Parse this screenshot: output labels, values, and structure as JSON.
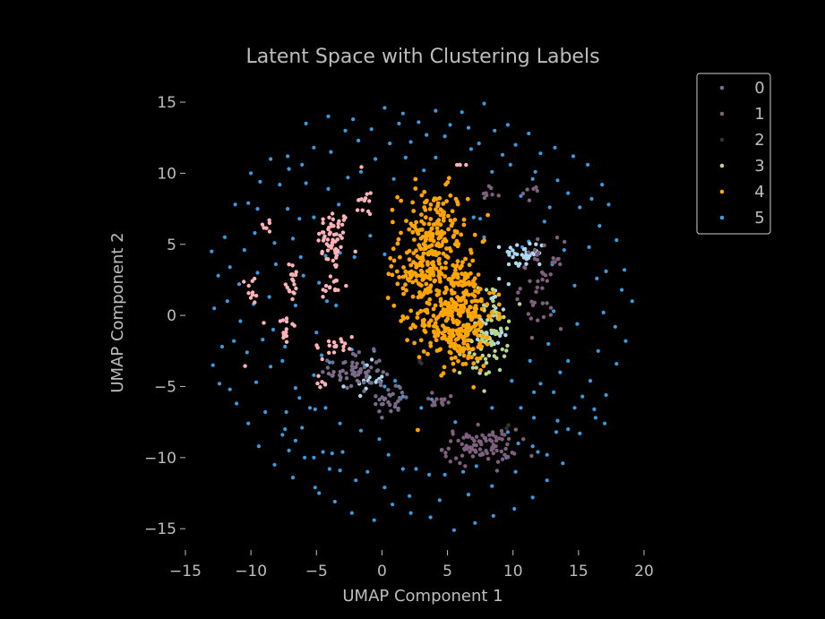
{
  "chart_data": {
    "type": "scatter",
    "title": "Latent Space with Clustering Labels",
    "xlabel": "UMAP Component 1",
    "ylabel": "UMAP Component 2",
    "xlim": [
      -15,
      20
    ],
    "ylim": [
      -16.5,
      16.2
    ],
    "xticks": [
      -15,
      -10,
      -5,
      0,
      5,
      10,
      15,
      20
    ],
    "yticks": [
      -15,
      -10,
      -5,
      0,
      5,
      10,
      15
    ],
    "xtick_labels": [
      "−15",
      "−10",
      "−5",
      "0",
      "5",
      "10",
      "15",
      "20"
    ],
    "ytick_labels": [
      "−15",
      "−10",
      "−5",
      "0",
      "5",
      "10",
      "15"
    ],
    "grid": false,
    "legend_position": "top-right",
    "background": "#000000",
    "series": [
      {
        "name": "0",
        "color": "#7a6b8a",
        "clusters": [
          {
            "center": [
              -2.0,
              -4.0
            ],
            "spread": [
              1.0,
              0.7
            ],
            "n": 60
          },
          {
            "center": [
              0.6,
              -5.8
            ],
            "spread": [
              0.8,
              0.6
            ],
            "n": 30
          }
        ]
      },
      {
        "name": "1",
        "color": "#7e5f7d",
        "clusters": [
          {
            "center": [
              7.5,
              -9.2
            ],
            "spread": [
              1.4,
              0.6
            ],
            "n": 90
          },
          {
            "center": [
              12.2,
              2.2
            ],
            "spread": [
              0.8,
              1.5
            ],
            "n": 45
          },
          {
            "center": [
              4.5,
              -6.0
            ],
            "spread": [
              1.0,
              0.3
            ],
            "n": 14
          },
          {
            "center": [
              8.2,
              8.5
            ],
            "spread": [
              0.4,
              0.3
            ],
            "n": 8
          },
          {
            "center": [
              11.4,
              8.6
            ],
            "spread": [
              0.6,
              0.3
            ],
            "n": 6
          }
        ]
      },
      {
        "name": "2",
        "color": "#333333",
        "clusters": [
          {
            "center": [
              3.2,
              -3.5
            ],
            "spread": [
              0.3,
              0.3
            ],
            "n": 3
          },
          {
            "center": [
              9.8,
              -7.8
            ],
            "spread": [
              0.2,
              0.2
            ],
            "n": 2
          }
        ]
      },
      {
        "name": "3",
        "color": "#b9d98a",
        "clusters": [
          {
            "center": [
              7.8,
              -1.2
            ],
            "spread": [
              0.9,
              1.5
            ],
            "n": 90
          }
        ]
      },
      {
        "name": "4",
        "color": "#ffa500",
        "clusters": [
          {
            "center": [
              3.9,
              5.5
            ],
            "spread": [
              1.3,
              1.7
            ],
            "n": 200
          },
          {
            "center": [
              5.6,
              0.2
            ],
            "spread": [
              1.5,
              2.0
            ],
            "n": 380
          },
          {
            "center": [
              2.5,
              2.9
            ],
            "spread": [
              1.0,
              0.7
            ],
            "n": 50
          },
          {
            "center": [
              2.8,
              -8.0
            ],
            "spread": [
              0.05,
              0.05
            ],
            "n": 1
          }
        ]
      }
    ],
    "ring_series": {
      "name": "5",
      "color": "#3a9be0",
      "points": [
        [
          -13,
          4.5
        ],
        [
          -12.5,
          2.8
        ],
        [
          -12.8,
          0.5
        ],
        [
          -12.2,
          -2.2
        ],
        [
          -12.9,
          -3.5
        ],
        [
          -11.6,
          -5.2
        ],
        [
          -11.2,
          7.8
        ],
        [
          -10,
          10
        ],
        [
          -8.5,
          11
        ],
        [
          -7.2,
          11.2
        ],
        [
          -5.8,
          13.5
        ],
        [
          -4.1,
          14
        ],
        [
          -2.2,
          13.8
        ],
        [
          0.2,
          14.6
        ],
        [
          1.6,
          14.2
        ],
        [
          2.8,
          13.6
        ],
        [
          4.1,
          14.4
        ],
        [
          6.1,
          14.3
        ],
        [
          7.8,
          14.9
        ],
        [
          9.6,
          13.4
        ],
        [
          11.2,
          12.8
        ],
        [
          13.2,
          11.8
        ],
        [
          14.6,
          11.2
        ],
        [
          15.7,
          10.6
        ],
        [
          16.8,
          9.2
        ],
        [
          17.3,
          7.8
        ],
        [
          17.9,
          5.3
        ],
        [
          18.5,
          3.2
        ],
        [
          19.1,
          1.0
        ],
        [
          18.6,
          -1.8
        ],
        [
          17.9,
          -3.4
        ],
        [
          17.1,
          -5.6
        ],
        [
          16.3,
          -7.2
        ],
        [
          15.1,
          -8.3
        ],
        [
          13.8,
          -10.4
        ],
        [
          12.6,
          -11.6
        ],
        [
          11.5,
          -12.8
        ],
        [
          10.1,
          -13.6
        ],
        [
          8.5,
          -14.1
        ],
        [
          7.1,
          -14.6
        ],
        [
          5.5,
          -15.1
        ],
        [
          3.7,
          -14.2
        ],
        [
          2.2,
          -13.9
        ],
        [
          0.8,
          -13.3
        ],
        [
          -0.6,
          -14.4
        ],
        [
          -2.3,
          -13.9
        ],
        [
          -3.6,
          -13.1
        ],
        [
          -5.1,
          -12.1
        ],
        [
          -6.8,
          -11.4
        ],
        [
          -8.2,
          -10.5
        ],
        [
          -9.4,
          -9.2
        ],
        [
          -10.2,
          -7.6
        ],
        [
          -11.1,
          -6.2
        ],
        [
          -9.5,
          7.5
        ],
        [
          -7.8,
          9.2
        ],
        [
          -6.1,
          10.6
        ],
        [
          -3.9,
          11.5
        ],
        [
          -1.8,
          12.3
        ],
        [
          0.6,
          12.1
        ],
        [
          2.2,
          12.2
        ],
        [
          4.8,
          12.6
        ],
        [
          7.4,
          12.1
        ],
        [
          9.2,
          11.3
        ],
        [
          11.7,
          10.1
        ],
        [
          13.4,
          9.5
        ],
        [
          15.1,
          7.6
        ],
        [
          15.8,
          4.8
        ],
        [
          16.4,
          2.6
        ],
        [
          16.9,
          0.2
        ],
        [
          16.5,
          -2.5
        ],
        [
          15.9,
          -4.6
        ],
        [
          14.7,
          -6.5
        ],
        [
          13.3,
          -8.2
        ],
        [
          11.9,
          -9.6
        ],
        [
          10.2,
          -11.0
        ],
        [
          8.4,
          -12.0
        ],
        [
          6.6,
          -12.6
        ],
        [
          4.4,
          -13.0
        ],
        [
          2.1,
          -12.7
        ],
        [
          0.2,
          -12.1
        ],
        [
          -2.0,
          -11.6
        ],
        [
          -4.0,
          -10.8
        ],
        [
          -5.9,
          -10.0
        ],
        [
          -7.6,
          -8.4
        ],
        [
          -8.9,
          -6.8
        ],
        [
          -9.6,
          -4.7
        ],
        [
          -10.3,
          -2.6
        ],
        [
          -10.8,
          -0.4
        ],
        [
          -10.9,
          2.2
        ],
        [
          -10.5,
          4.6
        ],
        [
          -8.2,
          5.1
        ],
        [
          -6.3,
          6.8
        ],
        [
          -4.1,
          8.9
        ],
        [
          -1.6,
          10.1
        ],
        [
          0.9,
          9.6
        ],
        [
          3.2,
          10.2
        ],
        [
          5.9,
          10.6
        ],
        [
          8.4,
          10.1
        ],
        [
          10.6,
          8.4
        ],
        [
          12.4,
          6.6
        ],
        [
          13.9,
          4.6
        ],
        [
          14.7,
          2.1
        ],
        [
          14.9,
          -0.6
        ],
        [
          14.2,
          -3.2
        ],
        [
          13.1,
          -5.4
        ],
        [
          11.6,
          -7.2
        ],
        [
          9.6,
          -8.2
        ],
        [
          -0.2,
          -8.7
        ],
        [
          -1.6,
          -8.1
        ],
        [
          -3.2,
          -7.6
        ],
        [
          -5.1,
          -6.6
        ],
        [
          -6.6,
          -5.1
        ],
        [
          -7.6,
          -3.2
        ],
        [
          -8.3,
          -1.0
        ],
        [
          -8.6,
          1.3
        ],
        [
          -8.1,
          3.6
        ],
        [
          -6.8,
          5.4
        ],
        [
          -5.2,
          6.9
        ],
        [
          -3.3,
          7.8
        ],
        [
          -0.9,
          5.6
        ],
        [
          0.2,
          4.3
        ],
        [
          -2.1,
          4.1
        ],
        [
          -3.2,
          4.4
        ],
        [
          -4.3,
          4.2
        ],
        [
          -4.8,
          2.3
        ],
        [
          -4.2,
          1.0
        ],
        [
          -3.5,
          0.7
        ],
        [
          -5.0,
          -1.2
        ],
        [
          -4.6,
          -2.8
        ],
        [
          -5.2,
          -4.2
        ],
        [
          -5.5,
          -6.5
        ],
        [
          -4.3,
          -6.5
        ],
        [
          0.2,
          -5.0
        ],
        [
          1.0,
          -4.6
        ],
        [
          1.3,
          -5.0
        ],
        [
          1.6,
          -5.7
        ],
        [
          7.5,
          6.8
        ],
        [
          7.0,
          6.9
        ],
        [
          7.8,
          5.5
        ],
        [
          11.2,
          5.2
        ],
        [
          10.7,
          4.8
        ],
        [
          -4.5,
          -9.6
        ],
        [
          -3.8,
          -9.7
        ],
        [
          -3.0,
          -9.6
        ],
        [
          -5.2,
          -10.0
        ],
        [
          -3.2,
          -10.9
        ],
        [
          -4.8,
          -12.5
        ],
        [
          -1.1,
          -11.0
        ],
        [
          0.5,
          -9.8
        ],
        [
          1.6,
          -10.8
        ],
        [
          2.6,
          -10.8
        ],
        [
          3.6,
          -11.2
        ],
        [
          4.8,
          -11.2
        ],
        [
          6.2,
          -11.0
        ],
        [
          7.2,
          -10.6
        ],
        [
          9.5,
          -10.0
        ],
        [
          10.4,
          -9.0
        ],
        [
          11.5,
          -9.2
        ],
        [
          12.6,
          -9.8
        ],
        [
          13.4,
          -7.4
        ],
        [
          14.2,
          -8.0
        ],
        [
          9.9,
          -4.6
        ],
        [
          11.3,
          -3.2
        ],
        [
          12.1,
          -4.8
        ],
        [
          13.6,
          -4.0
        ],
        [
          15.3,
          -5.7
        ],
        [
          16.2,
          -6.6
        ],
        [
          17.0,
          -7.6
        ],
        [
          18.3,
          1.8
        ],
        [
          17.8,
          -0.8
        ],
        [
          17.1,
          3.1
        ],
        [
          16.6,
          6.3
        ],
        [
          16.0,
          8.2
        ],
        [
          14.2,
          8.6
        ],
        [
          12.8,
          7.6
        ],
        [
          -12.4,
          -4.8
        ],
        [
          -11.3,
          -1.8
        ],
        [
          -11.8,
          1.0
        ],
        [
          -11.6,
          3.4
        ],
        [
          -12.0,
          5.5
        ],
        [
          -10.2,
          7.9
        ],
        [
          -9.3,
          9.4
        ],
        [
          -7.1,
          10.3
        ],
        [
          -5.2,
          11.8
        ],
        [
          -2.8,
          13.0
        ],
        [
          -0.8,
          13.1
        ],
        [
          1.3,
          13.5
        ],
        [
          3.4,
          12.7
        ],
        [
          5.2,
          13.4
        ],
        [
          6.6,
          13.2
        ],
        [
          8.6,
          13.0
        ],
        [
          10.2,
          12.0
        ],
        [
          12.1,
          11.4
        ],
        [
          -7.3,
          -6.8
        ],
        [
          -6.1,
          -7.9
        ],
        [
          -8.5,
          -3.6
        ],
        [
          -9.1,
          -1.7
        ],
        [
          -9.8,
          0.8
        ],
        [
          -9.5,
          3.0
        ],
        [
          -9.7,
          5.8
        ],
        [
          -4.0,
          -3.3
        ],
        [
          -2.3,
          -2.4
        ],
        [
          -1.3,
          -3.5
        ],
        [
          -0.6,
          -2.5
        ],
        [
          -6.6,
          -8.8
        ],
        [
          -7.1,
          -9.5
        ],
        [
          -7.4,
          -8.0
        ],
        [
          -6.3,
          -5.8
        ],
        [
          -7.4,
          -2.2
        ],
        [
          3.8,
          -5.9
        ],
        [
          3.0,
          -6.5
        ],
        [
          -6.6,
          0.7
        ],
        [
          -6.0,
          2.8
        ],
        [
          -6.2,
          4.1
        ],
        [
          -7.2,
          7.5
        ],
        [
          -5.8,
          9.3
        ],
        [
          -2.6,
          9.7
        ],
        [
          -0.5,
          11.0
        ],
        [
          1.8,
          11.1
        ],
        [
          4.1,
          11.1
        ],
        [
          6.8,
          11.7
        ],
        [
          9.8,
          10.6
        ],
        [
          11.5,
          9.6
        ],
        [
          13.0,
          3.6
        ],
        [
          13.1,
          0.3
        ],
        [
          12.7,
          -2.0
        ],
        [
          11.6,
          -5.4
        ],
        [
          10.6,
          -6.5
        ],
        [
          5.6,
          -7.5
        ],
        [
          8.4,
          -6.5
        ]
      ]
    },
    "pink_series": {
      "color": "#ffb3b8",
      "clusters": [
        {
          "center": [
            -3.7,
            5.3
          ],
          "spread": [
            0.6,
            1.1
          ],
          "n": 60
        },
        {
          "center": [
            -6.9,
            2.5
          ],
          "spread": [
            0.25,
            0.8
          ],
          "n": 18
        },
        {
          "center": [
            -9.9,
            1.8
          ],
          "spread": [
            0.25,
            0.5
          ],
          "n": 10
        },
        {
          "center": [
            -7.4,
            -0.9
          ],
          "spread": [
            0.4,
            0.8
          ],
          "n": 14
        },
        {
          "center": [
            -3.9,
            2.0
          ],
          "spread": [
            0.5,
            0.5
          ],
          "n": 14
        },
        {
          "center": [
            -3.6,
            -2.2
          ],
          "spread": [
            0.9,
            0.5
          ],
          "n": 18
        },
        {
          "center": [
            -1.3,
            8.0
          ],
          "spread": [
            0.5,
            0.5
          ],
          "n": 12
        },
        {
          "center": [
            -8.7,
            6.3
          ],
          "spread": [
            0.2,
            0.3
          ],
          "n": 6
        },
        {
          "center": [
            -4.6,
            -4.6
          ],
          "spread": [
            0.3,
            0.4
          ],
          "n": 6
        },
        {
          "center": [
            6.0,
            10.6
          ],
          "spread": [
            0.3,
            0.1
          ],
          "n": 3
        },
        {
          "center": [
            -10.5,
            -3.7
          ],
          "spread": [
            0.1,
            0.1
          ],
          "n": 1
        },
        {
          "center": [
            -1.6,
            10.3
          ],
          "spread": [
            0.1,
            0.1
          ],
          "n": 1
        }
      ]
    },
    "lightblue_series": {
      "color": "#aed8f0",
      "clusters": [
        {
          "center": [
            10.9,
            4.3
          ],
          "spread": [
            0.8,
            0.5
          ],
          "n": 35
        },
        {
          "center": [
            8.4,
            -0.8
          ],
          "spread": [
            0.6,
            1.4
          ],
          "n": 30
        },
        {
          "center": [
            -1.2,
            -4.5
          ],
          "spread": [
            0.7,
            0.6
          ],
          "n": 14
        }
      ]
    }
  }
}
